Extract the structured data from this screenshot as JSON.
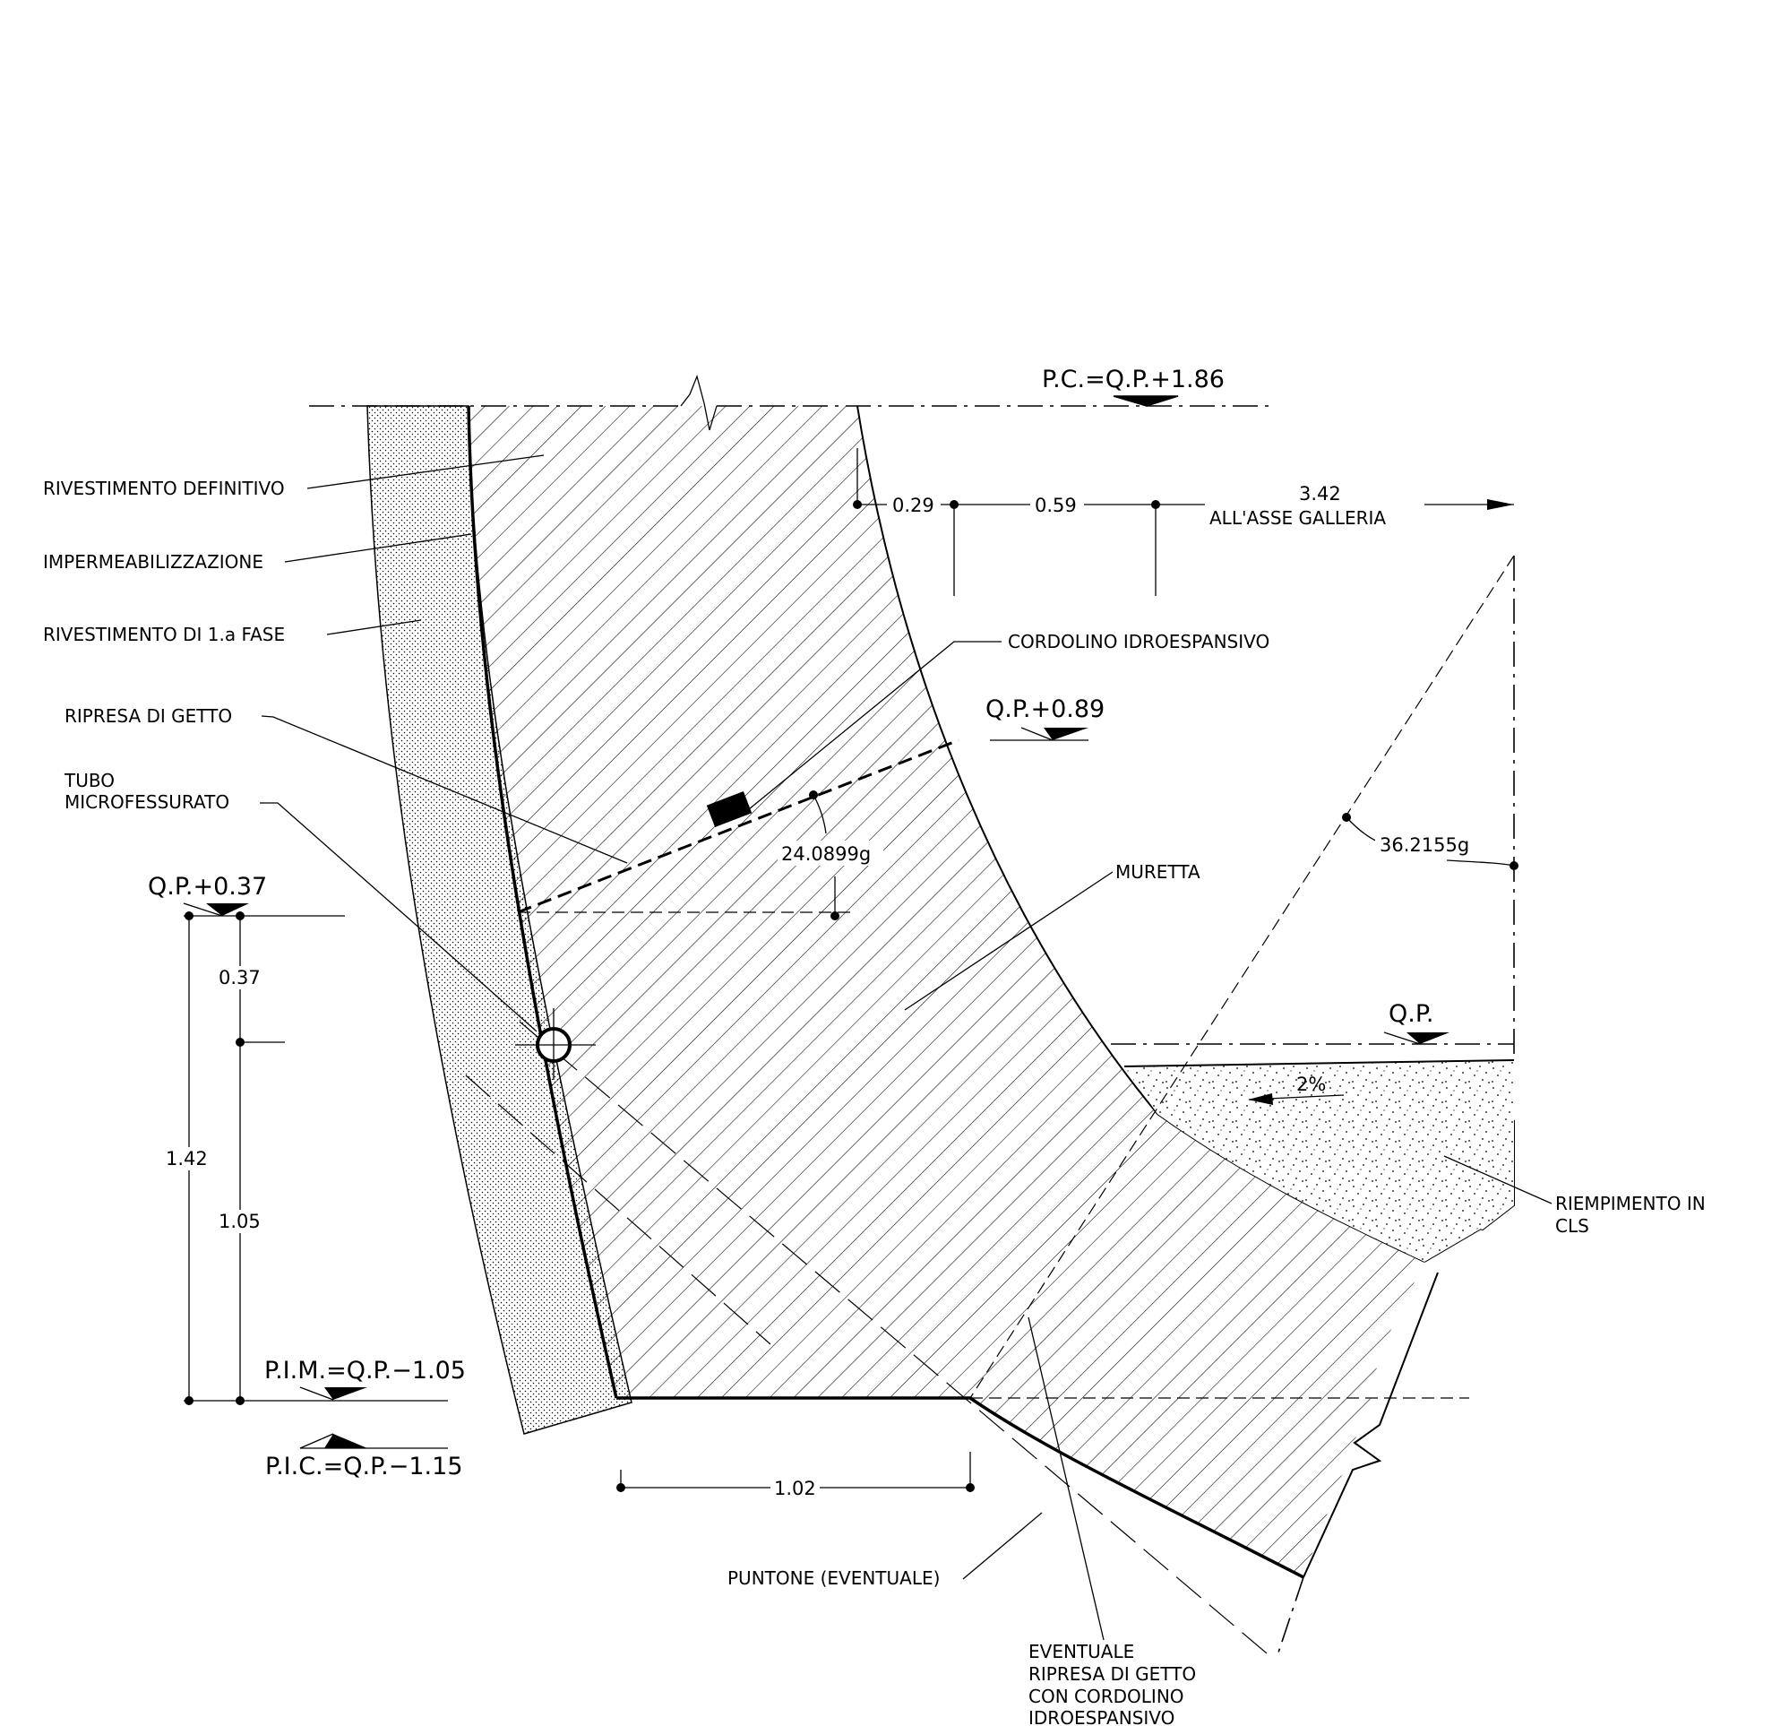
{
  "labels": {
    "rivestimento_definitivo": "RIVESTIMENTO  DEFINITIVO",
    "impermeabilizzazione": "IMPERMEABILIZZAZIONE",
    "rivestimento_prima_fase": "RIVESTIMENTO  DI  1.a  FASE",
    "ripresa_di_getto": "RIPRESA  DI  GETTO",
    "tubo_line1": "TUBO",
    "tubo_line2": "MICROFESSURATO",
    "cordolino": "CORDOLINO  IDROESPANSIVO",
    "muretta": "MURETTA",
    "riempimento_line1": "RIEMPIMENTO  IN",
    "riempimento_line2": "CLS",
    "puntone": "PUNTONE  (EVENTUALE)",
    "eventuale_line1": "EVENTUALE",
    "eventuale_line2": "RIPRESA  DI  GETTO",
    "eventuale_line3": "CON  CORDOLINO",
    "eventuale_line4": "IDROESPANSIVO",
    "all_asse_galleria": "ALL'ASSE  GALLERIA"
  },
  "levels": {
    "pc": "P.C.=Q.P.+1.86",
    "qp_089": "Q.P.+0.89",
    "qp_037": "Q.P.+0.37",
    "qp": "Q.P.",
    "pim": "P.I.M.=Q.P.−1.05",
    "pic": "P.I.C.=Q.P.−1.15"
  },
  "dimensions": {
    "d_029": "0.29",
    "d_059": "0.59",
    "d_342": "3.42",
    "angle_1": "24.0899g",
    "angle_2": "36.2155g",
    "slope": "2%",
    "d_037": "0.37",
    "d_142": "1.42",
    "d_105": "1.05",
    "d_102": "1.02"
  }
}
